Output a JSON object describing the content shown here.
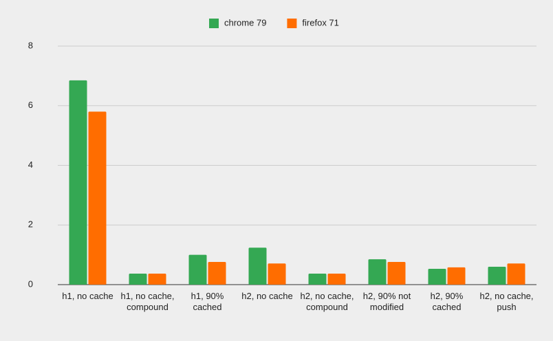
{
  "chart_data": {
    "type": "bar",
    "categories": [
      "h1, no cache",
      "h1, no cache, compound",
      "h1, 90% cached",
      "h2, no cache",
      "h2, no cache, compound",
      "h2, 90% not modified",
      "h2, 90% cached",
      "h2, no cache, push"
    ],
    "series": [
      {
        "name": "chrome 79",
        "color": "#34a853",
        "values": [
          6.85,
          0.37,
          1.0,
          1.24,
          0.37,
          0.85,
          0.53,
          0.6
        ]
      },
      {
        "name": "firefox 71",
        "color": "#ff6d00",
        "values": [
          5.8,
          0.37,
          0.76,
          0.71,
          0.37,
          0.76,
          0.58,
          0.71
        ]
      }
    ],
    "ylim": [
      0,
      8
    ],
    "yticks": [
      0,
      2,
      4,
      6,
      8
    ],
    "grid": true,
    "legend": "top"
  }
}
